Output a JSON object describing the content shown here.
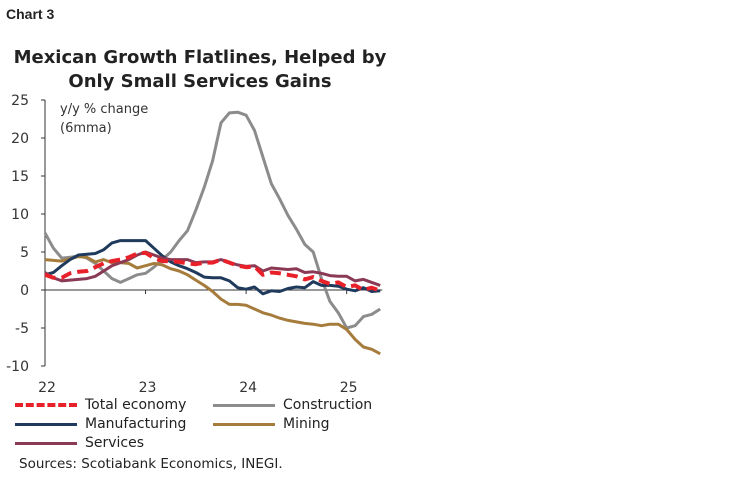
{
  "chart_label": "Chart 3",
  "chart_data": {
    "type": "line",
    "title": "Mexican Growth Flatlines, Helped by Only Small Services Gains",
    "ylabel": "y/y % change (6mma)",
    "unit_line1": "y/y % change",
    "unit_line2": "(6mma)",
    "xlabel": "",
    "ylim": [
      -10,
      25
    ],
    "yticks": [
      "25",
      "20",
      "15",
      "10",
      "5",
      "0",
      "-5",
      "-10"
    ],
    "xticks": [
      "22",
      "23",
      "24",
      "25"
    ],
    "x_start": "2022-01",
    "x_end": "2025-05",
    "frequency": "monthly",
    "grid": false,
    "legend_position": "bottom",
    "series": [
      {
        "name": "Total economy",
        "color": "#e8202a",
        "dashed": true,
        "values": [
          2,
          1.6,
          1.6,
          2.2,
          2.4,
          2.5,
          3,
          3.5,
          3.8,
          4,
          4.3,
          4.8,
          4.9,
          4.2,
          3.8,
          3.8,
          3.7,
          3.5,
          3.4,
          3.6,
          3.6,
          4,
          3.6,
          3.2,
          3,
          3.1,
          2,
          2.3,
          2.2,
          2,
          1.8,
          1.4,
          1.7,
          1.2,
          0.8,
          1,
          0.4,
          0.6,
          0,
          0.3,
          -0.1
        ]
      },
      {
        "name": "Construction",
        "color": "#8c8c8c",
        "dashed": false,
        "values": [
          7.5,
          5.5,
          4.2,
          4.3,
          4.5,
          4.2,
          3.5,
          2.5,
          1.5,
          1,
          1.5,
          2,
          2.2,
          3,
          4,
          5,
          6.5,
          7.8,
          10.5,
          13.5,
          17,
          22,
          23.3,
          23.4,
          23,
          21,
          17.5,
          14,
          12,
          9.8,
          8,
          6,
          5,
          1.5,
          -1.5,
          -3,
          -5,
          -4.7,
          -3.5,
          -3.2,
          -2.5
        ]
      },
      {
        "name": "Manufacturing",
        "color": "#1f3a5c",
        "dashed": false,
        "values": [
          2,
          2.3,
          3.2,
          4,
          4.6,
          4.7,
          4.8,
          5.3,
          6.2,
          6.5,
          6.5,
          6.5,
          6.5,
          5.5,
          4.5,
          3.7,
          3.2,
          2.8,
          2.3,
          1.7,
          1.6,
          1.6,
          1.2,
          0.3,
          0.1,
          0.4,
          -0.5,
          -0.1,
          -0.2,
          0.2,
          0.4,
          0.3,
          1.1,
          0.6,
          0.6,
          0.5,
          0.1,
          -0.1,
          0.3,
          -0.2,
          -0.1
        ]
      },
      {
        "name": "Mining",
        "color": "#a67c3d",
        "dashed": false,
        "values": [
          4,
          3.9,
          3.8,
          4.1,
          4.4,
          4.3,
          3.7,
          4,
          3.6,
          3.6,
          3.5,
          2.9,
          3.2,
          3.5,
          3.3,
          2.8,
          2.5,
          2,
          1.3,
          0.6,
          -0.2,
          -1.2,
          -1.9,
          -1.9,
          -2,
          -2.5,
          -3,
          -3.3,
          -3.7,
          -4,
          -4.2,
          -4.4,
          -4.5,
          -4.7,
          -4.5,
          -4.5,
          -5.2,
          -6.5,
          -7.5,
          -7.8,
          -8.4
        ]
      },
      {
        "name": "Services",
        "color": "#8b3a55",
        "dashed": false,
        "values": [
          2.3,
          1.6,
          1.2,
          1.3,
          1.4,
          1.5,
          1.8,
          2.5,
          3.2,
          3.6,
          4,
          4.6,
          5,
          4.6,
          4.2,
          4,
          4,
          4,
          3.6,
          3.7,
          3.7,
          4,
          3.6,
          3.3,
          3.1,
          3.2,
          2.5,
          2.9,
          2.8,
          2.7,
          2.8,
          2.3,
          2.4,
          2.2,
          1.9,
          1.8,
          1.8,
          1.2,
          1.4,
          1,
          0.6
        ]
      }
    ]
  },
  "source": "Sources: Scotiabank Economics, INEGI."
}
